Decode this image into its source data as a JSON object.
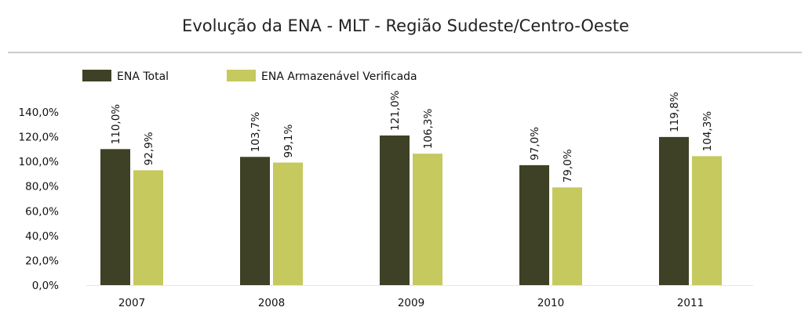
{
  "chart_data": {
    "type": "bar",
    "title": "Evolução da ENA - MLT - Região Sudeste/Centro-Oeste",
    "xlabel": "",
    "ylabel": "",
    "categories": [
      "2007",
      "2008",
      "2009",
      "2010",
      "2011"
    ],
    "series": [
      {
        "name": "ENA Total",
        "values": [
          110.0,
          103.7,
          121.0,
          97.0,
          119.8
        ],
        "labels": [
          "110,0%",
          "103,7%",
          "121,0%",
          "97,0%",
          "119,8%"
        ],
        "color": "#3f4126"
      },
      {
        "name": "ENA Armazenável Verificada",
        "values": [
          92.9,
          99.1,
          106.3,
          79.0,
          104.3
        ],
        "labels": [
          "92,9%",
          "99,1%",
          "106,3%",
          "79,0%",
          "104,3%"
        ],
        "color": "#c5c95e"
      }
    ],
    "yticks": [
      0,
      20,
      40,
      60,
      80,
      100,
      120,
      140
    ],
    "ytick_labels": [
      "0,0%",
      "20,0%",
      "40,0%",
      "60,0%",
      "80,0%",
      "100,0%",
      "120,0%",
      "140,0%"
    ],
    "ylim": [
      0,
      140
    ],
    "grid": false,
    "legend": "top-left"
  }
}
